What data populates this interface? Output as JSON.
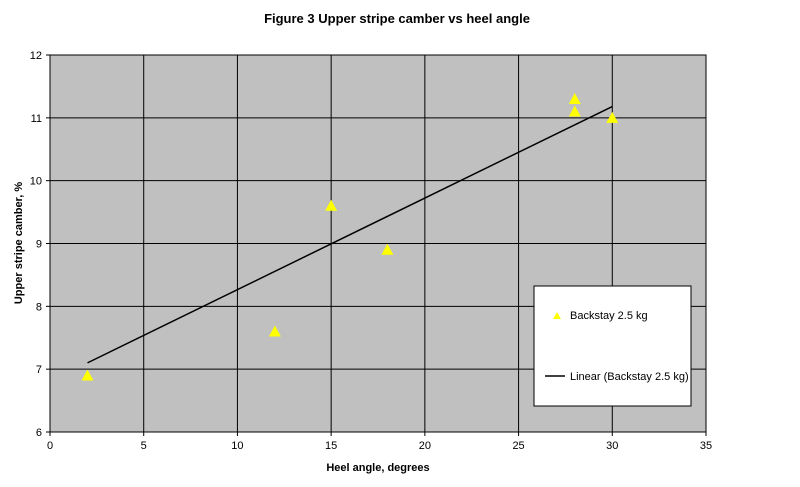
{
  "chart_data": {
    "type": "scatter",
    "title": "Figure 3 Upper stripe camber vs heel angle",
    "xlabel": "Heel angle, degrees",
    "ylabel": "Upper stripe camber, %",
    "xlim": [
      0,
      35
    ],
    "ylim": [
      6,
      12
    ],
    "xticks": [
      "0",
      "5",
      "10",
      "15",
      "20",
      "25",
      "30",
      "35"
    ],
    "yticks": [
      "6",
      "7",
      "8",
      "9",
      "10",
      "11",
      "12"
    ],
    "grid": true,
    "plot_background": "#c0c0c0",
    "legend_position": "right",
    "series": [
      {
        "name": "Backstay 2.5 kg",
        "marker": "triangle",
        "color": "#ffff00",
        "x": [
          2,
          12,
          15,
          18,
          28,
          28,
          30
        ],
        "y": [
          6.9,
          7.6,
          9.6,
          8.9,
          11.3,
          11.1,
          11.0
        ]
      }
    ],
    "trendline": {
      "name": "Linear (Backstay 2.5 kg)",
      "type": "linear",
      "color": "#000000",
      "x": [
        2,
        30
      ],
      "y": [
        7.1,
        11.18
      ]
    }
  }
}
